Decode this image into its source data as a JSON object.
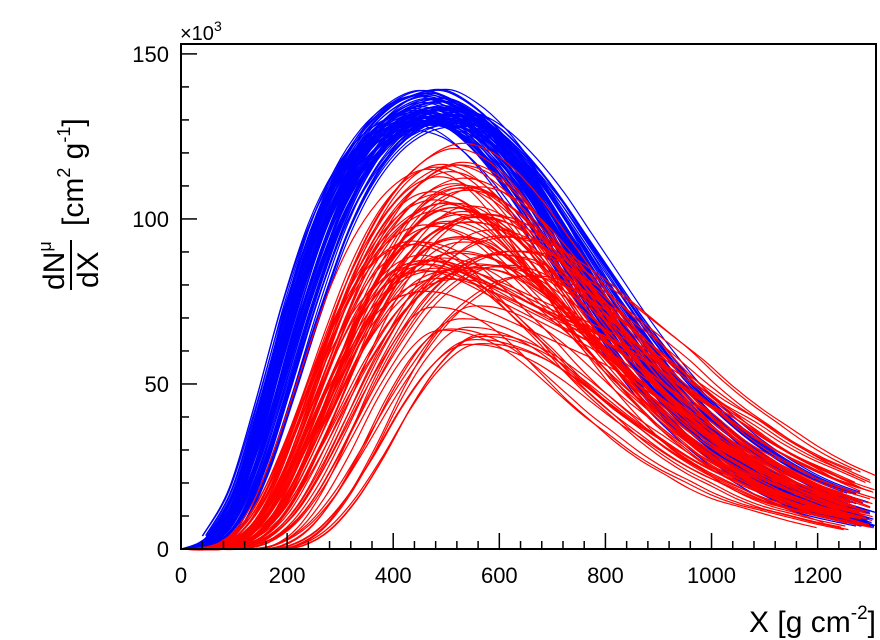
{
  "chart_data": {
    "type": "line",
    "title": "",
    "xlabel": "X [g cm",
    "xlabel_sup": "-2",
    "xlabel_end": "]",
    "ylabel_frac_num": "dN",
    "ylabel_frac_num_sup": "μ",
    "ylabel_frac_den": "dX",
    "ylabel_unit_a": "[cm",
    "ylabel_unit_sup1": "2",
    "ylabel_unit_b": " g",
    "ylabel_unit_sup2": "-1",
    "ylabel_unit_c": "]",
    "y_multiplier_base": "×10",
    "y_multiplier_exp": "3",
    "xlim": [
      0,
      1310
    ],
    "ylim": [
      0,
      153
    ],
    "xticks": [
      "0",
      "200",
      "400",
      "600",
      "800",
      "1000",
      "1200"
    ],
    "yticks": [
      "0",
      "50",
      "100",
      "150"
    ],
    "grid": false,
    "legend": "none",
    "x": [
      0,
      50,
      100,
      150,
      200,
      250,
      300,
      350,
      400,
      450,
      500,
      550,
      600,
      650,
      700,
      750,
      800,
      850,
      900,
      950,
      1000,
      1050,
      1100,
      1150,
      1200,
      1250,
      1310
    ],
    "series": [
      {
        "color": "#0000ff",
        "curves": [
          [
            0,
            2,
            12,
            35,
            64,
            90,
            110,
            123,
            131,
            135,
            136,
            132,
            125,
            115,
            102,
            88,
            75,
            63,
            52,
            43,
            35,
            28,
            23,
            18,
            15,
            12,
            9
          ],
          [
            0,
            3,
            15,
            40,
            70,
            96,
            114,
            126,
            133,
            136,
            134,
            129,
            120,
            109,
            96,
            82,
            69,
            57,
            47,
            38,
            31,
            25,
            20,
            16,
            12,
            10,
            7
          ],
          [
            0,
            1,
            8,
            26,
            52,
            78,
            100,
            115,
            125,
            130,
            131,
            128,
            122,
            113,
            101,
            89,
            76,
            65,
            54,
            45,
            37,
            31,
            25,
            21,
            17,
            14,
            11
          ],
          [
            0,
            4,
            18,
            44,
            73,
            97,
            113,
            123,
            128,
            130,
            128,
            122,
            113,
            102,
            90,
            77,
            65,
            54,
            44,
            36,
            29,
            23,
            18,
            14,
            11,
            9,
            7
          ],
          [
            0,
            2,
            11,
            32,
            60,
            86,
            106,
            119,
            127,
            131,
            131,
            128,
            121,
            112,
            100,
            87,
            74,
            62,
            51,
            42,
            34,
            28,
            22,
            18,
            14,
            11,
            8
          ],
          [
            0,
            1,
            6,
            22,
            46,
            72,
            95,
            112,
            123,
            129,
            131,
            130,
            125,
            117,
            107,
            95,
            83,
            71,
            60,
            50,
            42,
            35,
            29,
            24,
            20,
            17,
            14
          ]
        ]
      },
      {
        "color": "#ff0000",
        "curves": [
          [
            0,
            0,
            2,
            9,
            23,
            42,
            63,
            82,
            96,
            105,
            109,
            108,
            103,
            95,
            85,
            75,
            64,
            55,
            46,
            38,
            32,
            26,
            22,
            18,
            15,
            12,
            10
          ],
          [
            0,
            0,
            1,
            5,
            15,
            31,
            50,
            69,
            84,
            95,
            101,
            102,
            99,
            93,
            85,
            76,
            66,
            57,
            48,
            41,
            34,
            28,
            23,
            19,
            16,
            13,
            10
          ],
          [
            0,
            0,
            4,
            15,
            34,
            56,
            77,
            93,
            104,
            111,
            114,
            112,
            106,
            97,
            86,
            75,
            64,
            54,
            45,
            37,
            30,
            25,
            20,
            16,
            13,
            11,
            8
          ],
          [
            0,
            0,
            0,
            2,
            8,
            19,
            34,
            50,
            64,
            76,
            84,
            89,
            90,
            88,
            83,
            77,
            70,
            62,
            54,
            47,
            41,
            35,
            30,
            26,
            22,
            19,
            16
          ],
          [
            0,
            0,
            0,
            0,
            1,
            6,
            16,
            30,
            46,
            59,
            67,
            68,
            66,
            62,
            56,
            49,
            42,
            36,
            30,
            25,
            21,
            17,
            14,
            12,
            10,
            8,
            6
          ],
          [
            0,
            0,
            1,
            7,
            20,
            38,
            56,
            71,
            81,
            85,
            85,
            82,
            78,
            74,
            70,
            66,
            62,
            57,
            51,
            45,
            40,
            34,
            29,
            25,
            21,
            18,
            15
          ],
          [
            0,
            0,
            2,
            10,
            26,
            46,
            66,
            81,
            90,
            94,
            93,
            89,
            82,
            74,
            66,
            57,
            49,
            42,
            35,
            29,
            24,
            20,
            16,
            13,
            11,
            9,
            7
          ],
          [
            0,
            0,
            1,
            4,
            12,
            26,
            43,
            60,
            74,
            84,
            90,
            93,
            93,
            91,
            86,
            80,
            73,
            66,
            59,
            51,
            44,
            38,
            32,
            27,
            23,
            19,
            16
          ]
        ]
      }
    ]
  }
}
